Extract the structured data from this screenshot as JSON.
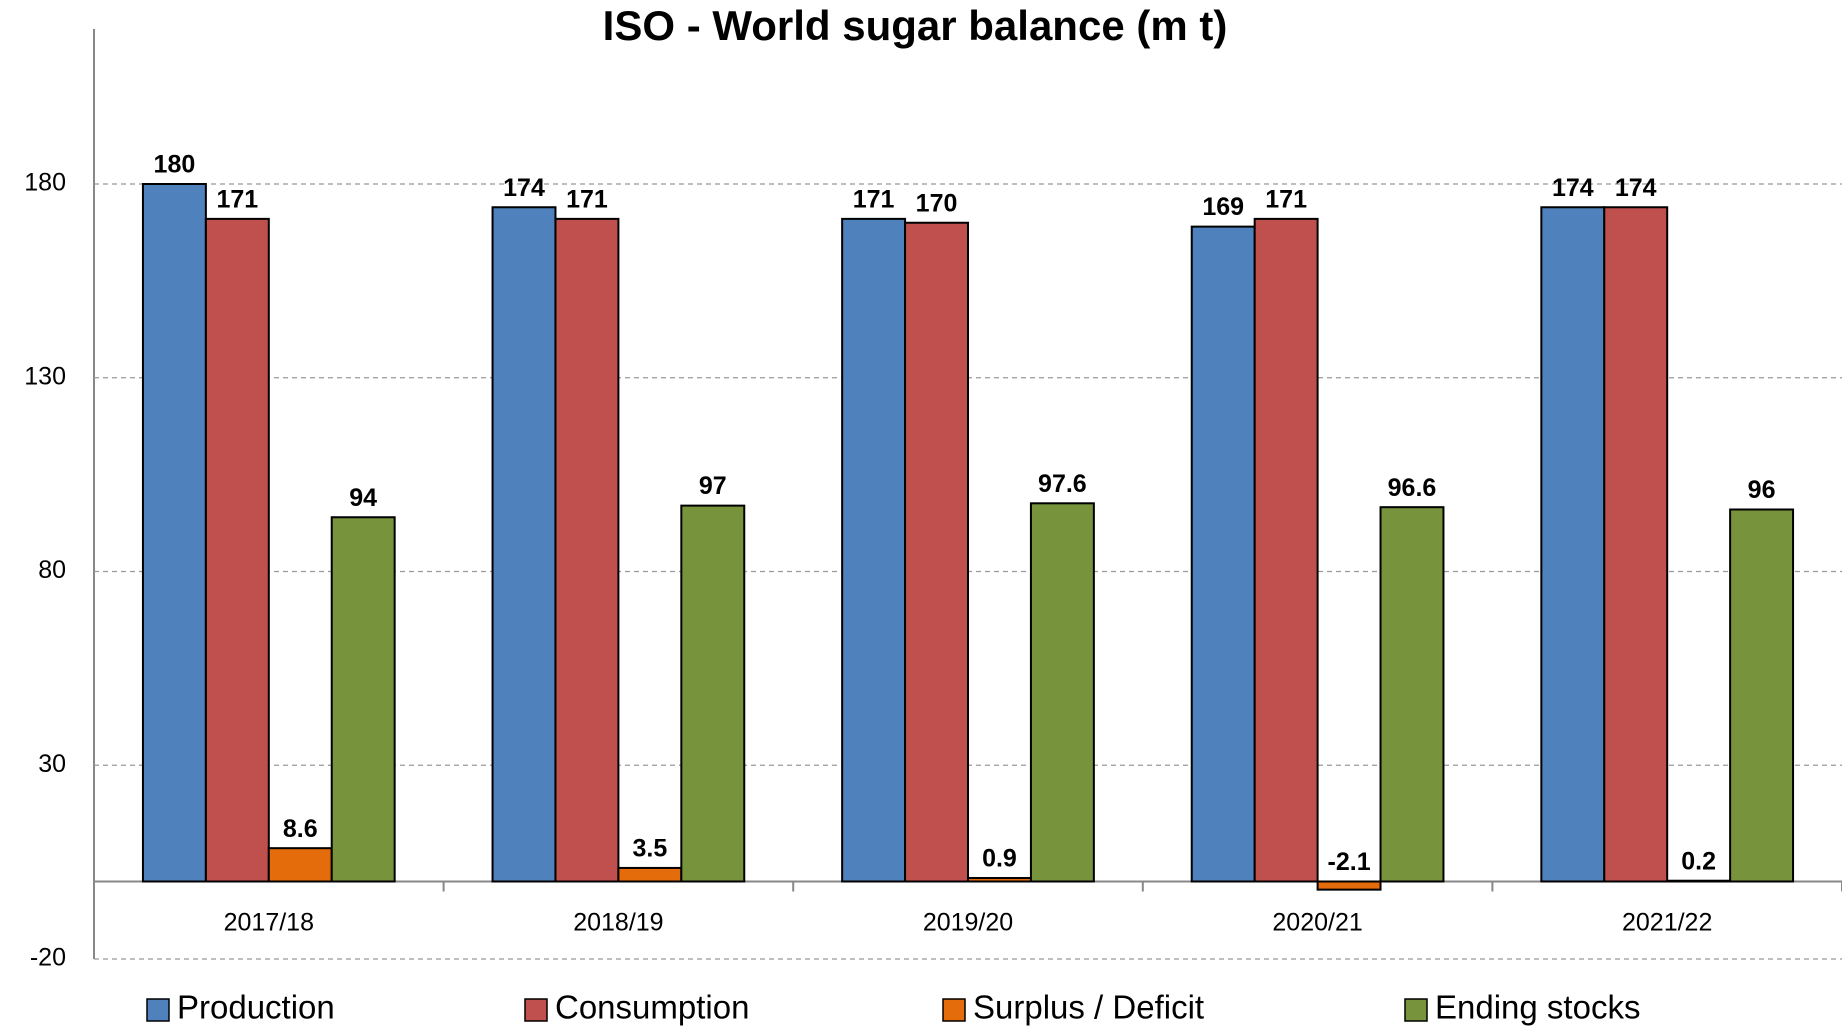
{
  "chart_data": {
    "type": "bar",
    "title": "ISO - World sugar balance (m t)",
    "categories": [
      "2017/18",
      "2018/19",
      "2019/20",
      "2020/21",
      "2021/22"
    ],
    "series": [
      {
        "name": "Production",
        "color": "#4f81bd",
        "values": [
          180,
          174,
          171,
          169,
          174
        ]
      },
      {
        "name": "Consumption",
        "color": "#c0504d",
        "values": [
          171,
          171,
          170,
          171,
          174
        ]
      },
      {
        "name": "Surplus / Deficit",
        "color": "#e46c0a",
        "values": [
          8.6,
          3.5,
          0.9,
          -2.1,
          0.2
        ]
      },
      {
        "name": "Ending stocks",
        "color": "#77933c",
        "values": [
          94,
          97,
          97.6,
          96.6,
          96
        ]
      }
    ],
    "ylim": [
      -20,
      220
    ],
    "yticks": [
      -20,
      30,
      80,
      130,
      180
    ],
    "grid": true,
    "legend": "bottom"
  }
}
